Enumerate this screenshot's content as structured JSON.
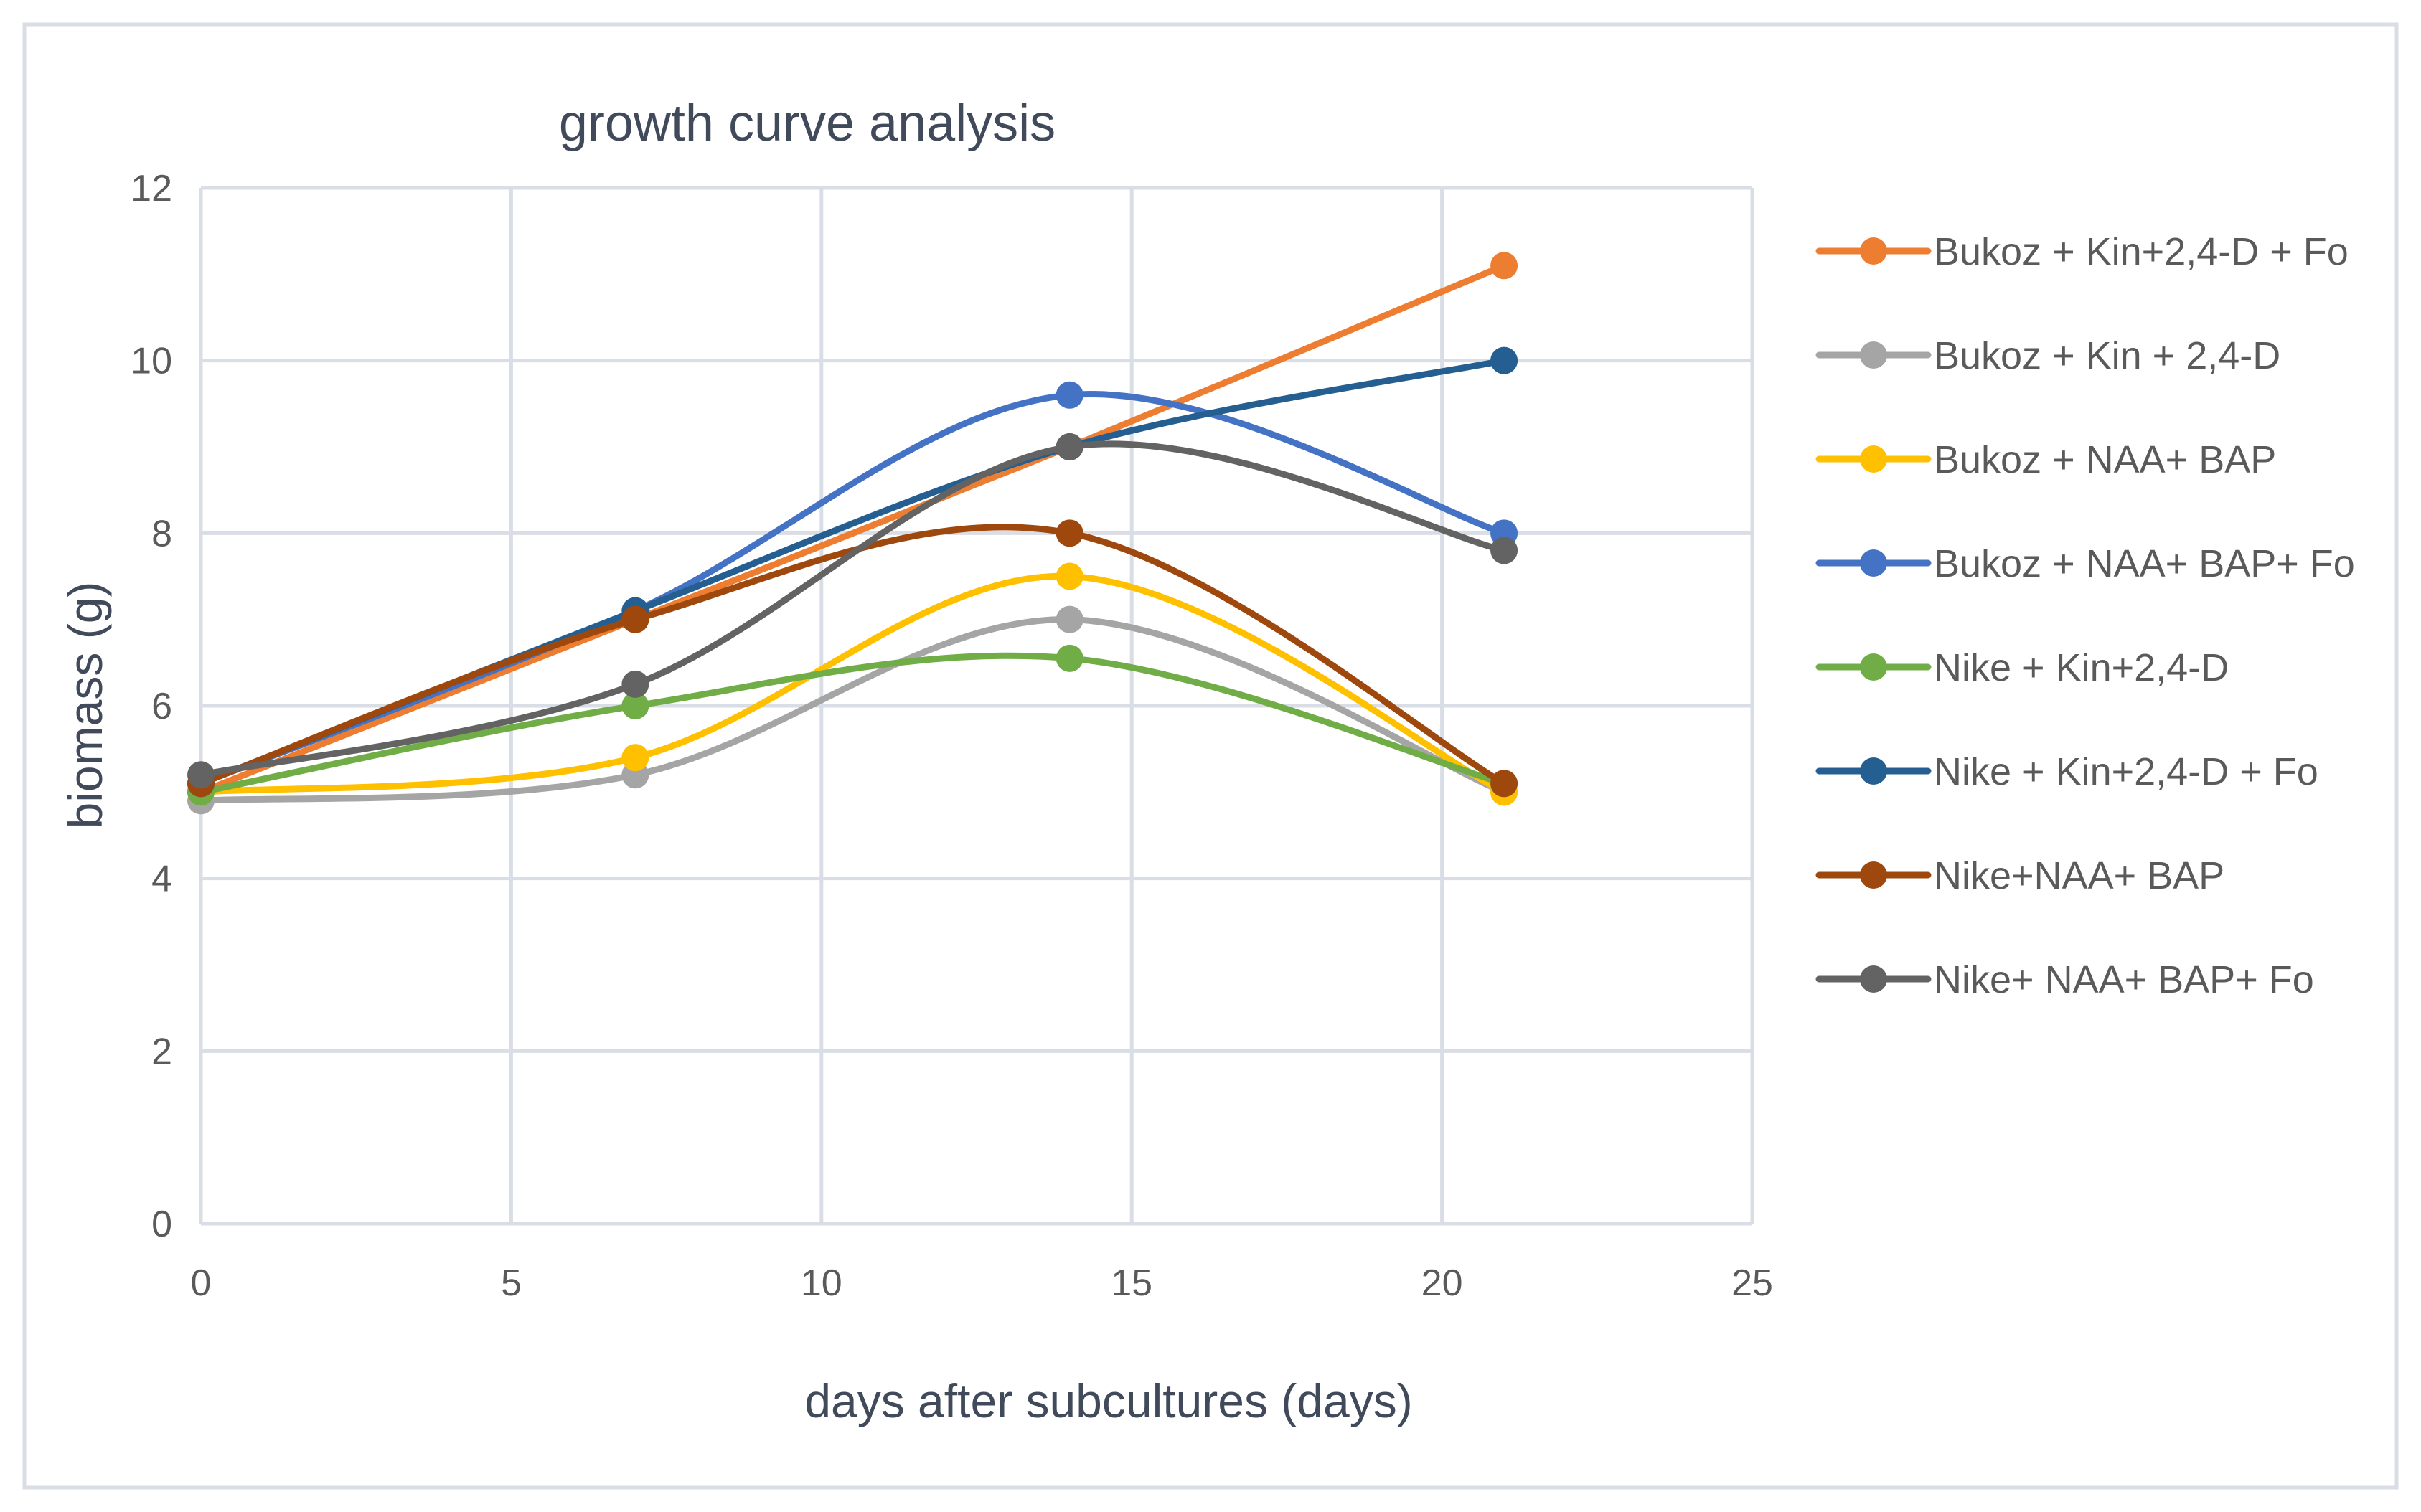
{
  "chart_data": {
    "type": "line",
    "smooth": true,
    "title": "growth curve analysis",
    "xlabel": "days after subcultures (days)",
    "ylabel": "biomass (g)",
    "xlim": [
      0,
      25
    ],
    "ylim": [
      0,
      12
    ],
    "xticks": [
      "0",
      "5",
      "10",
      "15",
      "20",
      "25"
    ],
    "yticks": [
      "0",
      "2",
      "4",
      "6",
      "8",
      "10",
      "12"
    ],
    "grid": true,
    "legend_position": "right",
    "x": [
      0,
      7,
      14,
      21
    ],
    "series": [
      {
        "name": "Bukoz + Kin+2,4-D + Fo",
        "color": "#ED7D31",
        "values": [
          5.0,
          7.0,
          9.0,
          11.1
        ]
      },
      {
        "name": "Bukoz + Kin + 2,4-D",
        "color": "#A5A5A5",
        "values": [
          4.9,
          5.2,
          7.0,
          5.0
        ]
      },
      {
        "name": "Bukoz + NAA+ BAP",
        "color": "#FFC000",
        "values": [
          5.0,
          5.4,
          7.5,
          5.0
        ]
      },
      {
        "name": "Bukoz + NAA+ BAP+ Fo",
        "color": "#4472C4",
        "values": [
          5.1,
          7.1,
          9.6,
          8.0
        ]
      },
      {
        "name": "Nike + Kin+2,4-D",
        "color": "#70AD47",
        "values": [
          5.0,
          6.0,
          6.55,
          5.1
        ]
      },
      {
        "name": "Nike + Kin+2,4-D + Fo",
        "color": "#255E91",
        "values": [
          5.1,
          7.1,
          9.0,
          10.0
        ]
      },
      {
        "name": "Nike+NAA+ BAP",
        "color": "#9E480E",
        "values": [
          5.1,
          7.0,
          8.0,
          5.1
        ]
      },
      {
        "name": "Nike+ NAA+ BAP+ Fo",
        "color": "#636363",
        "values": [
          5.2,
          6.25,
          9.0,
          7.8
        ]
      }
    ]
  }
}
